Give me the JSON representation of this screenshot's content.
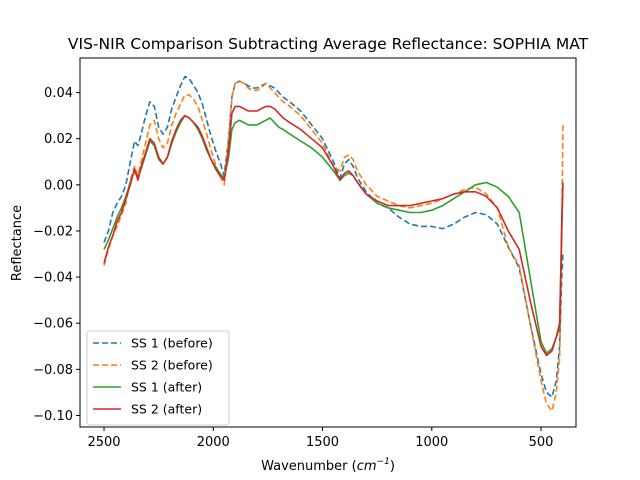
{
  "chart_data": {
    "type": "line",
    "title": "VIS-NIR Comparison Subtracting Average Reflectance: SOPHIA MAT",
    "xlabel_main": "Wavenumber (",
    "xlabel_math": "cm",
    "xlabel_sup": "−1",
    "xlabel_close": ")",
    "ylabel": "Reflectance",
    "xlim": [
      2610,
      340
    ],
    "ylim": [
      -0.105,
      0.055
    ],
    "x_inverted": true,
    "grid": false,
    "legend_position": "lower-left",
    "x_ticks": [
      {
        "value": 2500,
        "label": "2500"
      },
      {
        "value": 2000,
        "label": "2000"
      },
      {
        "value": 1500,
        "label": "1500"
      },
      {
        "value": 1000,
        "label": "1000"
      },
      {
        "value": 500,
        "label": "500"
      }
    ],
    "y_ticks": [
      {
        "value": 0.04,
        "label": "0.04"
      },
      {
        "value": 0.02,
        "label": "0.02"
      },
      {
        "value": 0.0,
        "label": "0.00"
      },
      {
        "value": -0.02,
        "label": "−0.02"
      },
      {
        "value": -0.04,
        "label": "−0.04"
      },
      {
        "value": -0.06,
        "label": "−0.06"
      },
      {
        "value": -0.08,
        "label": "−0.08"
      },
      {
        "value": -0.1,
        "label": "−0.10"
      }
    ],
    "series": [
      {
        "name": "SS 1 (before)",
        "color": "#1f77b4",
        "dashed": true,
        "x": [
          2500,
          2480,
          2460,
          2440,
          2420,
          2400,
          2380,
          2360,
          2345,
          2330,
          2310,
          2290,
          2270,
          2250,
          2230,
          2210,
          2190,
          2170,
          2150,
          2130,
          2110,
          2090,
          2070,
          2050,
          2030,
          2010,
          1990,
          1970,
          1950,
          1930,
          1915,
          1900,
          1880,
          1860,
          1840,
          1820,
          1800,
          1780,
          1760,
          1740,
          1720,
          1700,
          1680,
          1650,
          1600,
          1550,
          1500,
          1450,
          1420,
          1400,
          1380,
          1360,
          1340,
          1300,
          1250,
          1200,
          1150,
          1100,
          1050,
          1000,
          950,
          900,
          850,
          800,
          750,
          700,
          650,
          600,
          550,
          500,
          475,
          450,
          430,
          415,
          410,
          405,
          400
        ],
        "y": [
          -0.025,
          -0.02,
          -0.012,
          -0.008,
          -0.005,
          0.0,
          0.01,
          0.019,
          0.017,
          0.022,
          0.03,
          0.036,
          0.034,
          0.025,
          0.022,
          0.025,
          0.033,
          0.038,
          0.043,
          0.047,
          0.046,
          0.043,
          0.04,
          0.035,
          0.028,
          0.021,
          0.015,
          0.01,
          0.004,
          0.02,
          0.038,
          0.044,
          0.045,
          0.044,
          0.043,
          0.042,
          0.042,
          0.043,
          0.044,
          0.043,
          0.042,
          0.04,
          0.038,
          0.036,
          0.032,
          0.026,
          0.02,
          0.01,
          0.003,
          0.009,
          0.011,
          0.008,
          0.003,
          -0.003,
          -0.008,
          -0.01,
          -0.014,
          -0.017,
          -0.018,
          -0.018,
          -0.019,
          -0.017,
          -0.014,
          -0.012,
          -0.013,
          -0.017,
          -0.027,
          -0.036,
          -0.06,
          -0.082,
          -0.09,
          -0.092,
          -0.085,
          -0.07,
          -0.055,
          -0.04,
          -0.03
        ]
      },
      {
        "name": "SS 2 (before)",
        "color": "#ff7f0e",
        "dashed": true,
        "x": [
          2500,
          2480,
          2460,
          2440,
          2420,
          2400,
          2380,
          2360,
          2345,
          2330,
          2310,
          2290,
          2270,
          2250,
          2230,
          2210,
          2190,
          2170,
          2150,
          2130,
          2110,
          2090,
          2070,
          2050,
          2030,
          2010,
          1990,
          1970,
          1950,
          1930,
          1915,
          1900,
          1880,
          1860,
          1840,
          1820,
          1800,
          1780,
          1760,
          1740,
          1720,
          1700,
          1680,
          1650,
          1600,
          1550,
          1500,
          1450,
          1420,
          1400,
          1380,
          1360,
          1340,
          1300,
          1250,
          1200,
          1150,
          1100,
          1050,
          1000,
          950,
          900,
          850,
          800,
          750,
          700,
          650,
          600,
          550,
          500,
          475,
          450,
          430,
          415,
          410,
          405,
          400
        ],
        "y": [
          -0.035,
          -0.028,
          -0.022,
          -0.018,
          -0.013,
          -0.008,
          0.002,
          0.008,
          0.004,
          0.01,
          0.018,
          0.026,
          0.028,
          0.02,
          0.016,
          0.018,
          0.026,
          0.031,
          0.035,
          0.039,
          0.039,
          0.037,
          0.034,
          0.028,
          0.022,
          0.015,
          0.009,
          0.004,
          0.0,
          0.02,
          0.038,
          0.044,
          0.045,
          0.044,
          0.042,
          0.041,
          0.041,
          0.042,
          0.044,
          0.042,
          0.04,
          0.038,
          0.036,
          0.034,
          0.03,
          0.024,
          0.018,
          0.008,
          0.006,
          0.012,
          0.013,
          0.011,
          0.006,
          0.0,
          -0.005,
          -0.007,
          -0.009,
          -0.01,
          -0.009,
          -0.008,
          -0.006,
          -0.004,
          -0.002,
          -0.001,
          -0.004,
          -0.01,
          -0.027,
          -0.035,
          -0.06,
          -0.085,
          -0.095,
          -0.098,
          -0.09,
          -0.075,
          -0.05,
          -0.02,
          0.026
        ]
      },
      {
        "name": "SS 1 (after)",
        "color": "#2ca02c",
        "dashed": false,
        "x": [
          2500,
          2480,
          2460,
          2440,
          2420,
          2400,
          2380,
          2360,
          2345,
          2330,
          2310,
          2290,
          2270,
          2250,
          2230,
          2210,
          2190,
          2170,
          2150,
          2130,
          2110,
          2090,
          2070,
          2050,
          2030,
          2010,
          1990,
          1970,
          1950,
          1930,
          1915,
          1900,
          1880,
          1860,
          1840,
          1820,
          1800,
          1780,
          1760,
          1740,
          1720,
          1700,
          1680,
          1650,
          1600,
          1550,
          1500,
          1450,
          1420,
          1400,
          1380,
          1360,
          1340,
          1300,
          1250,
          1200,
          1150,
          1100,
          1050,
          1000,
          950,
          900,
          850,
          800,
          750,
          700,
          650,
          600,
          550,
          500,
          475,
          450,
          430,
          415,
          410,
          405,
          400
        ],
        "y": [
          -0.028,
          -0.024,
          -0.019,
          -0.014,
          -0.01,
          -0.005,
          0.001,
          0.006,
          0.003,
          0.007,
          0.013,
          0.019,
          0.017,
          0.011,
          0.009,
          0.012,
          0.018,
          0.023,
          0.027,
          0.03,
          0.029,
          0.027,
          0.024,
          0.02,
          0.015,
          0.011,
          0.008,
          0.005,
          0.003,
          0.012,
          0.024,
          0.027,
          0.028,
          0.027,
          0.026,
          0.026,
          0.026,
          0.027,
          0.028,
          0.029,
          0.027,
          0.025,
          0.024,
          0.022,
          0.019,
          0.016,
          0.012,
          0.006,
          0.002,
          0.004,
          0.005,
          0.004,
          0.001,
          -0.004,
          -0.008,
          -0.01,
          -0.011,
          -0.012,
          -0.012,
          -0.011,
          -0.009,
          -0.006,
          -0.003,
          0.0,
          0.001,
          -0.001,
          -0.005,
          -0.012,
          -0.04,
          -0.068,
          -0.073,
          -0.071,
          -0.066,
          -0.062,
          -0.04,
          -0.02,
          0.0
        ]
      },
      {
        "name": "SS 2 (after)",
        "color": "#d62728",
        "dashed": false,
        "x": [
          2500,
          2480,
          2460,
          2440,
          2420,
          2400,
          2380,
          2360,
          2345,
          2330,
          2310,
          2290,
          2270,
          2250,
          2230,
          2210,
          2190,
          2170,
          2150,
          2130,
          2110,
          2090,
          2070,
          2050,
          2030,
          2010,
          1990,
          1970,
          1950,
          1930,
          1915,
          1900,
          1880,
          1860,
          1840,
          1820,
          1800,
          1780,
          1760,
          1740,
          1720,
          1700,
          1680,
          1650,
          1600,
          1550,
          1500,
          1450,
          1420,
          1400,
          1380,
          1360,
          1340,
          1300,
          1250,
          1200,
          1150,
          1100,
          1050,
          1000,
          950,
          900,
          850,
          800,
          750,
          700,
          650,
          600,
          550,
          500,
          475,
          450,
          430,
          415,
          410,
          405,
          400
        ],
        "y": [
          -0.034,
          -0.027,
          -0.022,
          -0.016,
          -0.012,
          -0.006,
          0.0,
          0.007,
          0.002,
          0.008,
          0.014,
          0.02,
          0.018,
          0.012,
          0.009,
          0.012,
          0.019,
          0.024,
          0.028,
          0.03,
          0.029,
          0.027,
          0.025,
          0.021,
          0.016,
          0.011,
          0.007,
          0.004,
          0.002,
          0.015,
          0.031,
          0.034,
          0.034,
          0.033,
          0.032,
          0.032,
          0.032,
          0.033,
          0.034,
          0.034,
          0.033,
          0.031,
          0.029,
          0.027,
          0.024,
          0.02,
          0.016,
          0.008,
          0.002,
          0.005,
          0.006,
          0.004,
          0.001,
          -0.004,
          -0.007,
          -0.009,
          -0.009,
          -0.009,
          -0.008,
          -0.007,
          -0.006,
          -0.004,
          -0.003,
          -0.003,
          -0.005,
          -0.01,
          -0.02,
          -0.028,
          -0.05,
          -0.07,
          -0.074,
          -0.072,
          -0.066,
          -0.06,
          -0.04,
          -0.015,
          0.001
        ]
      }
    ]
  }
}
